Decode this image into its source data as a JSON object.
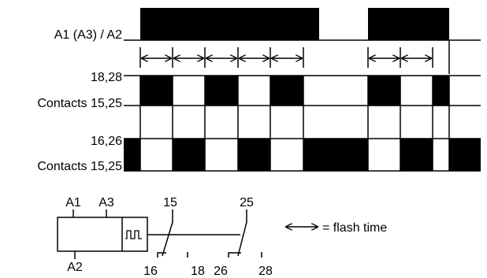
{
  "timing": {
    "supply_label": "A1 (A3) / A2",
    "out1_top_label": "18,28",
    "out1_bottom_label": "Contacts 15,25",
    "out2_top_label": "16,26",
    "out2_bottom_label": "Contacts 15,25"
  },
  "schematic": {
    "terminal_a1": "A1",
    "terminal_a3": "A3",
    "terminal_a2": "A2",
    "terminal_15": "15",
    "terminal_25": "25",
    "terminal_16": "16",
    "terminal_18": "18",
    "terminal_26": "26",
    "terminal_28": "28"
  },
  "legend": {
    "text": "= flash time"
  },
  "colors": {
    "ink": "#000000",
    "background": "#ffffff"
  }
}
